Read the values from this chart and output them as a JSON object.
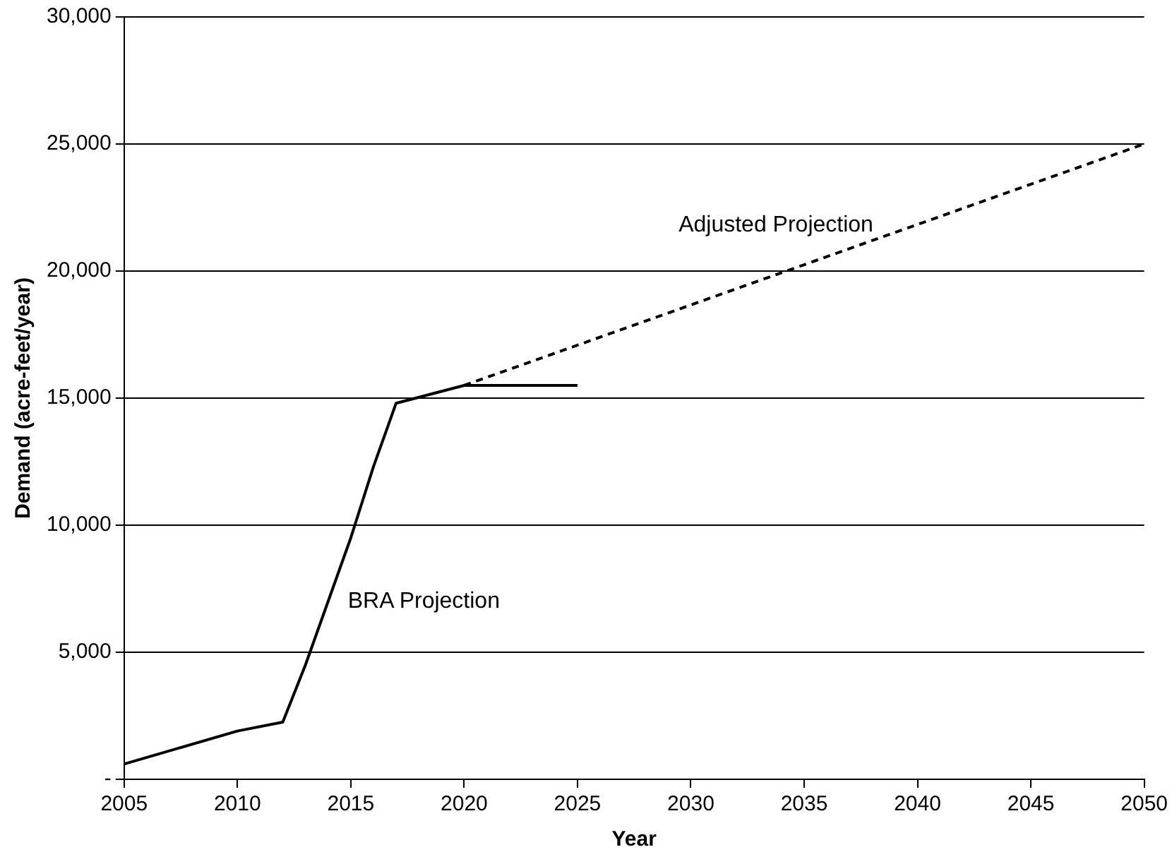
{
  "chart_data": {
    "type": "line",
    "xlabel": "Year",
    "ylabel": "Demand (acre-feet/year)",
    "xlim": [
      2005,
      2050
    ],
    "xticks": [
      2005,
      2010,
      2015,
      2020,
      2025,
      2030,
      2035,
      2040,
      2045,
      2050
    ],
    "ylim": [
      0,
      30000
    ],
    "yticks": [
      {
        "value": 0,
        "label": "-"
      },
      {
        "value": 5000,
        "label": "5,000"
      },
      {
        "value": 10000,
        "label": "10,000"
      },
      {
        "value": 15000,
        "label": "15,000"
      },
      {
        "value": 20000,
        "label": "20,000"
      },
      {
        "value": 25000,
        "label": "25,000"
      },
      {
        "value": 30000,
        "label": "30,000"
      }
    ],
    "grid": "y",
    "legend": false,
    "marker": "none",
    "series": [
      {
        "name": "BRA Projection",
        "color": "#000000",
        "line_style": "solid",
        "x": [
          2005,
          2010,
          2012,
          2013,
          2014,
          2015,
          2016,
          2017,
          2020,
          2025
        ],
        "values": [
          600,
          1900,
          2250,
          4500,
          7000,
          9500,
          12300,
          14800,
          15500,
          15500
        ]
      },
      {
        "name": "Adjusted Projection",
        "color": "#000000",
        "line_style": "dashed",
        "x": [
          2020,
          2050
        ],
        "values": [
          15500,
          25000
        ]
      }
    ]
  }
}
